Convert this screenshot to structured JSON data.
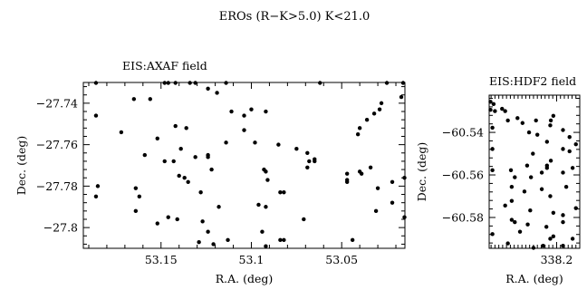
{
  "chart_data": {
    "title": "EROs (R−K>5.0) K<21.0",
    "panels": [
      {
        "type": "scatter",
        "subtitle": "EIS:AXAF field",
        "xlabel": "R.A. (deg)",
        "ylabel": "Dec. (deg)",
        "xlim": [
          53.193,
          53.015
        ],
        "ylim": [
          -27.81,
          -27.73
        ],
        "x_major_ticks": [
          53.15,
          53.1,
          53.05
        ],
        "x_tick_labels": [
          "53.15",
          "53.1",
          "53.05"
        ],
        "y_major_ticks": [
          -27.74,
          -27.76,
          -27.78,
          -27.8
        ],
        "y_tick_labels": [
          "−27.74",
          "−27.76",
          "−27.78",
          "−27.8"
        ],
        "grid": false,
        "points": [
          [
            53.186,
            -27.73
          ],
          [
            53.148,
            -27.73
          ],
          [
            53.146,
            -27.73
          ],
          [
            53.142,
            -27.73
          ],
          [
            53.134,
            -27.73
          ],
          [
            53.131,
            -27.73
          ],
          [
            53.114,
            -27.73
          ],
          [
            53.062,
            -27.73
          ],
          [
            53.025,
            -27.73
          ],
          [
            53.016,
            -27.73
          ],
          [
            53.124,
            -27.733
          ],
          [
            53.119,
            -27.735
          ],
          [
            53.017,
            -27.737
          ],
          [
            53.165,
            -27.738
          ],
          [
            53.156,
            -27.738
          ],
          [
            53.028,
            -27.74
          ],
          [
            53.029,
            -27.743
          ],
          [
            53.1,
            -27.743
          ],
          [
            53.111,
            -27.744
          ],
          [
            53.092,
            -27.744
          ],
          [
            53.032,
            -27.745
          ],
          [
            53.186,
            -27.746
          ],
          [
            53.104,
            -27.746
          ],
          [
            53.036,
            -27.748
          ],
          [
            53.142,
            -27.751
          ],
          [
            53.136,
            -27.752
          ],
          [
            53.104,
            -27.753
          ],
          [
            53.04,
            -27.752
          ],
          [
            53.172,
            -27.754
          ],
          [
            53.041,
            -27.755
          ],
          [
            53.152,
            -27.757
          ],
          [
            53.114,
            -27.759
          ],
          [
            53.098,
            -27.759
          ],
          [
            53.085,
            -27.76
          ],
          [
            53.075,
            -27.762
          ],
          [
            53.139,
            -27.762
          ],
          [
            53.069,
            -27.764
          ],
          [
            53.124,
            -27.765
          ],
          [
            53.159,
            -27.765
          ],
          [
            53.131,
            -27.766
          ],
          [
            53.124,
            -27.766
          ],
          [
            53.065,
            -27.767
          ],
          [
            53.068,
            -27.768
          ],
          [
            53.143,
            -27.768
          ],
          [
            53.065,
            -27.768
          ],
          [
            53.148,
            -27.768
          ],
          [
            53.069,
            -27.771
          ],
          [
            53.034,
            -27.771
          ],
          [
            53.122,
            -27.772
          ],
          [
            53.093,
            -27.772
          ],
          [
            53.092,
            -27.773
          ],
          [
            53.04,
            -27.773
          ],
          [
            53.039,
            -27.774
          ],
          [
            53.047,
            -27.774
          ],
          [
            53.14,
            -27.775
          ],
          [
            53.137,
            -27.776
          ],
          [
            53.015,
            -27.776
          ],
          [
            53.047,
            -27.777
          ],
          [
            53.091,
            -27.777
          ],
          [
            53.022,
            -27.778
          ],
          [
            53.135,
            -27.778
          ],
          [
            53.047,
            -27.778
          ],
          [
            53.03,
            -27.781
          ],
          [
            53.185,
            -27.78
          ],
          [
            53.164,
            -27.781
          ],
          [
            53.082,
            -27.783
          ],
          [
            53.084,
            -27.783
          ],
          [
            53.128,
            -27.783
          ],
          [
            53.162,
            -27.785
          ],
          [
            53.186,
            -27.785
          ],
          [
            53.022,
            -27.788
          ],
          [
            53.096,
            -27.789
          ],
          [
            53.092,
            -27.79
          ],
          [
            53.118,
            -27.79
          ],
          [
            53.164,
            -27.792
          ],
          [
            53.031,
            -27.792
          ],
          [
            53.015,
            -27.795
          ],
          [
            53.146,
            -27.795
          ],
          [
            53.141,
            -27.796
          ],
          [
            53.071,
            -27.796
          ],
          [
            53.127,
            -27.797
          ],
          [
            53.152,
            -27.798
          ],
          [
            53.094,
            -27.802
          ],
          [
            53.124,
            -27.802
          ],
          [
            53.113,
            -27.806
          ],
          [
            53.082,
            -27.806
          ],
          [
            53.084,
            -27.806
          ],
          [
            53.129,
            -27.807
          ],
          [
            53.044,
            -27.806
          ],
          [
            53.121,
            -27.808
          ],
          [
            53.092,
            -27.809
          ]
        ]
      },
      {
        "type": "scatter",
        "subtitle": "EIS:HDF2 field",
        "xlabel": "R.A. (deg)",
        "ylabel": "Dec. (deg)",
        "xlim": [
          338.235,
          338.188
        ],
        "ylim": [
          -60.5945,
          -60.5225
        ],
        "x_major_ticks": [
          338.2
        ],
        "x_tick_labels": [
          "338.2"
        ],
        "y_major_ticks": [
          -60.54,
          -60.56,
          -60.58
        ],
        "y_tick_labels": [
          "−60.54",
          "−60.56",
          "−60.58"
        ],
        "grid": false,
        "points": [
          [
            338.2343,
            -60.5256
          ],
          [
            338.2327,
            -60.5267
          ],
          [
            338.2343,
            -60.5294
          ],
          [
            338.2283,
            -60.5289
          ],
          [
            338.232,
            -60.53
          ],
          [
            338.2267,
            -60.53
          ],
          [
            338.2017,
            -60.5322
          ],
          [
            338.203,
            -60.5344
          ],
          [
            338.2203,
            -60.5333
          ],
          [
            338.2253,
            -60.5344
          ],
          [
            338.2107,
            -60.5344
          ],
          [
            338.2177,
            -60.5356
          ],
          [
            338.2033,
            -60.5367
          ],
          [
            338.2333,
            -60.5378
          ],
          [
            338.2143,
            -60.54
          ],
          [
            338.1967,
            -60.5389
          ],
          [
            338.21,
            -60.5411
          ],
          [
            338.1933,
            -60.5422
          ],
          [
            338.19,
            -60.5456
          ],
          [
            338.205,
            -60.5444
          ],
          [
            338.1967,
            -60.5478
          ],
          [
            338.2333,
            -60.5478
          ],
          [
            338.1933,
            -60.5489
          ],
          [
            338.2123,
            -60.55
          ],
          [
            338.203,
            -60.5533
          ],
          [
            338.205,
            -60.5556
          ],
          [
            338.2153,
            -60.5556
          ],
          [
            338.1917,
            -60.5567
          ],
          [
            338.205,
            -60.5567
          ],
          [
            338.2237,
            -60.5578
          ],
          [
            338.2333,
            -60.5578
          ],
          [
            338.1967,
            -60.5589
          ],
          [
            338.2077,
            -60.5589
          ],
          [
            338.2217,
            -60.5611
          ],
          [
            338.2133,
            -60.5611
          ],
          [
            338.2233,
            -60.5656
          ],
          [
            338.195,
            -60.5656
          ],
          [
            338.2077,
            -60.5667
          ],
          [
            338.2167,
            -60.5678
          ],
          [
            338.2033,
            -60.57
          ],
          [
            338.2233,
            -60.5722
          ],
          [
            338.2267,
            -60.5744
          ],
          [
            338.19,
            -60.5756
          ],
          [
            338.2137,
            -60.5767
          ],
          [
            338.2017,
            -60.5778
          ],
          [
            338.1967,
            -60.5789
          ],
          [
            338.2233,
            -60.5811
          ],
          [
            338.2217,
            -60.5822
          ],
          [
            338.1967,
            -60.5822
          ],
          [
            338.215,
            -60.5833
          ],
          [
            338.2053,
            -60.5844
          ],
          [
            338.219,
            -60.5867
          ],
          [
            338.2333,
            -60.5878
          ],
          [
            338.2017,
            -60.5889
          ],
          [
            338.2033,
            -60.59
          ],
          [
            338.1917,
            -60.59
          ],
          [
            338.2253,
            -60.5922
          ],
          [
            338.1967,
            -60.5933
          ],
          [
            338.207,
            -60.5933
          ],
          [
            338.212,
            -60.5944
          ]
        ]
      }
    ]
  }
}
